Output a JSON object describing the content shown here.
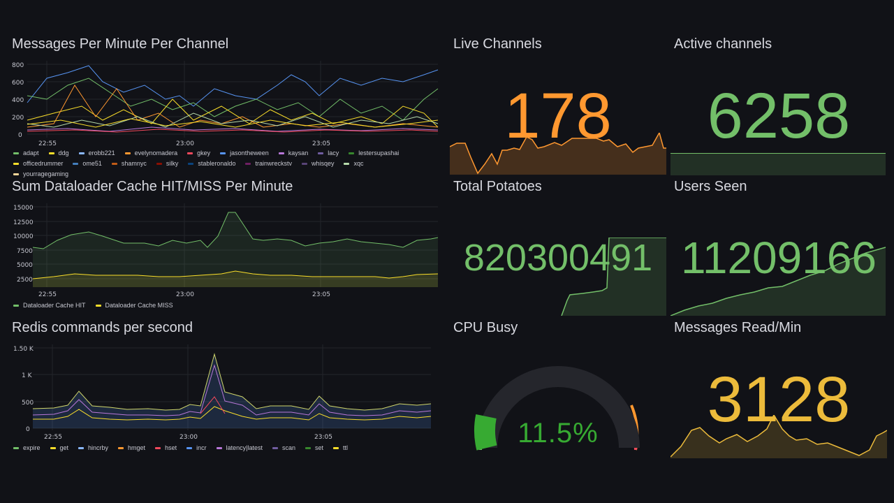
{
  "panels": {
    "messages": {
      "title": "Messages Per Minute Per Channel",
      "yticks": [
        "800",
        "600",
        "400",
        "200",
        "0"
      ],
      "xticks": [
        "22:55",
        "23:00",
        "23:05"
      ],
      "legend": [
        {
          "name": "adapt",
          "color": "#73bf69"
        },
        {
          "name": "ddg",
          "color": "#fade2a"
        },
        {
          "name": "erobb221",
          "color": "#8ab8ff"
        },
        {
          "name": "evelynomadera",
          "color": "#ff9830"
        },
        {
          "name": "gkey",
          "color": "#f2495c"
        },
        {
          "name": "jasontheween",
          "color": "#5794f2"
        },
        {
          "name": "kaysan",
          "color": "#b877d9"
        },
        {
          "name": "lacy",
          "color": "#705da0"
        },
        {
          "name": "lestersupashai",
          "color": "#37872d"
        },
        {
          "name": "officedrummer",
          "color": "#fade2a"
        },
        {
          "name": "ome51",
          "color": "#447ebc"
        },
        {
          "name": "shamnyc",
          "color": "#c15c17"
        },
        {
          "name": "silky",
          "color": "#890f02"
        },
        {
          "name": "stableronaldo",
          "color": "#0a437c"
        },
        {
          "name": "trainwreckstv",
          "color": "#6d1f62"
        },
        {
          "name": "whisqey",
          "color": "#584477"
        },
        {
          "name": "xqc",
          "color": "#b7dbab"
        },
        {
          "name": "yourragegaming",
          "color": "#f4d598"
        }
      ]
    },
    "dataloader": {
      "title": "Sum Dataloader Cache HIT/MISS Per Minute",
      "yticks": [
        "15000",
        "12500",
        "10000",
        "7500",
        "5000",
        "2500"
      ],
      "xticks": [
        "22:55",
        "23:00",
        "23:05"
      ],
      "legend": [
        {
          "name": "Dataloader Cache HIT",
          "color": "#73bf69"
        },
        {
          "name": "Dataloader Cache MISS",
          "color": "#fade2a"
        }
      ]
    },
    "redis": {
      "title": "Redis commands per second",
      "yticks": [
        "1.50 K",
        "1 K",
        "500",
        "0"
      ],
      "xticks": [
        "22:55",
        "23:00",
        "23:05"
      ],
      "legend": [
        {
          "name": "expire",
          "color": "#73bf69"
        },
        {
          "name": "get",
          "color": "#fade2a"
        },
        {
          "name": "hincrby",
          "color": "#8ab8ff"
        },
        {
          "name": "hmget",
          "color": "#ff9830"
        },
        {
          "name": "hset",
          "color": "#f2495c"
        },
        {
          "name": "incr",
          "color": "#5794f2"
        },
        {
          "name": "latency|latest",
          "color": "#b877d9"
        },
        {
          "name": "scan",
          "color": "#705da0"
        },
        {
          "name": "set",
          "color": "#37872d"
        },
        {
          "name": "ttl",
          "color": "#fade2a"
        }
      ]
    },
    "live_channels": {
      "title": "Live Channels",
      "value": "178",
      "color": "#ff9830"
    },
    "active_channels": {
      "title": "Active channels",
      "value": "6258",
      "color": "#73bf69"
    },
    "total_potatoes": {
      "title": "Total Potatoes",
      "value": "820300491",
      "color": "#73bf69"
    },
    "users_seen": {
      "title": "Users Seen",
      "value": "11209166",
      "color": "#73bf69"
    },
    "cpu_busy": {
      "title": "CPU Busy",
      "value": "11.5%",
      "percent": 11.5,
      "color": "#37aa32"
    },
    "messages_read": {
      "title": "Messages Read/Min",
      "value": "3128",
      "color": "#ecbb3b"
    }
  }
}
